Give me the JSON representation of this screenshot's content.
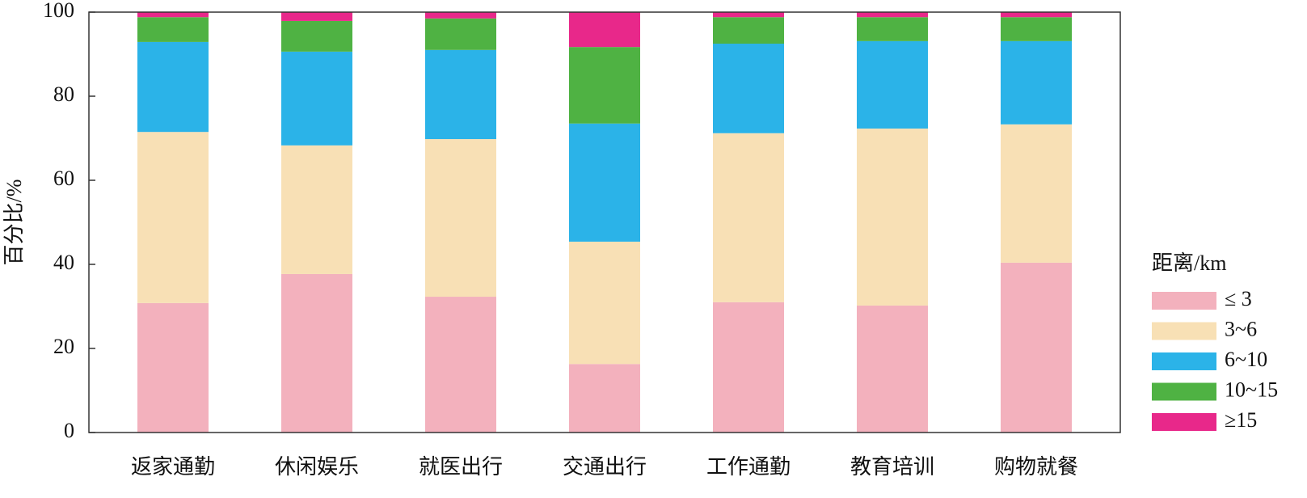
{
  "chart_data": {
    "type": "stacked_bar",
    "y_label": "百分比/%",
    "legend_title": "距离/km",
    "categories": [
      "返家通勤",
      "休闲娱乐",
      "就医出行",
      "交通出行",
      "工作通勤",
      "教育培训",
      "购物就餐"
    ],
    "series": [
      {
        "name": "≤ 3",
        "color": "#f3b1bd",
        "values": [
          30.8,
          37.7,
          32.3,
          16.3,
          31.0,
          30.2,
          40.4
        ]
      },
      {
        "name": "3~6",
        "color": "#f8e0b5",
        "values": [
          40.7,
          30.6,
          37.5,
          29.1,
          40.2,
          42.1,
          32.9
        ]
      },
      {
        "name": "6~10",
        "color": "#2bb3e8",
        "values": [
          21.4,
          22.3,
          21.2,
          28.1,
          21.3,
          20.8,
          19.8
        ]
      },
      {
        "name": "10~15",
        "color": "#4fb243",
        "values": [
          5.9,
          7.3,
          7.5,
          18.2,
          6.3,
          5.7,
          5.7
        ]
      },
      {
        "name": "≥15",
        "color": "#e8288a",
        "values": [
          1.2,
          2.1,
          1.5,
          8.3,
          1.2,
          1.2,
          1.2
        ]
      }
    ],
    "ylim": [
      0,
      100
    ],
    "yticks": [
      0,
      20,
      40,
      60,
      80,
      100
    ],
    "legend": "right"
  }
}
